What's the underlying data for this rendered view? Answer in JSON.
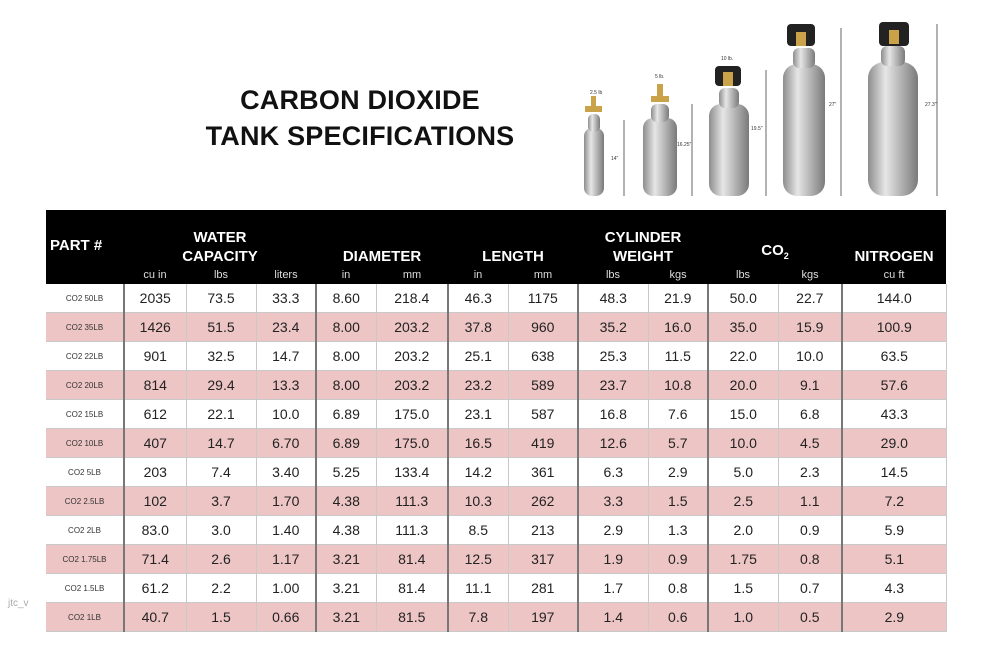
{
  "title": {
    "line1": "CARBON DIOXIDE",
    "line2": "TANK SPECIFICATIONS"
  },
  "tank_labels": {
    "weights": [
      "2.5 lb",
      "5 lb.",
      "10 lb.",
      "",
      ""
    ],
    "heights": [
      "14\"",
      "16.25\"",
      "19.5\"",
      "27\"",
      "27.3\""
    ]
  },
  "header": {
    "part": "PART #",
    "water_1": "WATER",
    "water_2": "CAPACITY",
    "diameter": "DIAMETER",
    "length": "LENGTH",
    "cyl_1": "CYLINDER",
    "cyl_2": "WEIGHT",
    "co2_main": "CO",
    "co2_sub": "2",
    "nitrogen": "NITROGEN"
  },
  "units": [
    "cu in",
    "lbs",
    "liters",
    "in",
    "mm",
    "in",
    "mm",
    "lbs",
    "kgs",
    "lbs",
    "kgs",
    "cu ft"
  ],
  "rows": [
    [
      "CO2 50LB",
      "2035",
      "73.5",
      "33.3",
      "8.60",
      "218.4",
      "46.3",
      "1175",
      "48.3",
      "21.9",
      "50.0",
      "22.7",
      "144.0"
    ],
    [
      "CO2 35LB",
      "1426",
      "51.5",
      "23.4",
      "8.00",
      "203.2",
      "37.8",
      "960",
      "35.2",
      "16.0",
      "35.0",
      "15.9",
      "100.9"
    ],
    [
      "CO2 22LB",
      "901",
      "32.5",
      "14.7",
      "8.00",
      "203.2",
      "25.1",
      "638",
      "25.3",
      "11.5",
      "22.0",
      "10.0",
      "63.5"
    ],
    [
      "CO2 20LB",
      "814",
      "29.4",
      "13.3",
      "8.00",
      "203.2",
      "23.2",
      "589",
      "23.7",
      "10.8",
      "20.0",
      "9.1",
      "57.6"
    ],
    [
      "CO2 15LB",
      "612",
      "22.1",
      "10.0",
      "6.89",
      "175.0",
      "23.1",
      "587",
      "16.8",
      "7.6",
      "15.0",
      "6.8",
      "43.3"
    ],
    [
      "CO2 10LB",
      "407",
      "14.7",
      "6.70",
      "6.89",
      "175.0",
      "16.5",
      "419",
      "12.6",
      "5.7",
      "10.0",
      "4.5",
      "29.0"
    ],
    [
      "CO2 5LB",
      "203",
      "7.4",
      "3.40",
      "5.25",
      "133.4",
      "14.2",
      "361",
      "6.3",
      "2.9",
      "5.0",
      "2.3",
      "14.5"
    ],
    [
      "CO2 2.5LB",
      "102",
      "3.7",
      "1.70",
      "4.38",
      "111.3",
      "10.3",
      "262",
      "3.3",
      "1.5",
      "2.5",
      "1.1",
      "7.2"
    ],
    [
      "CO2 2LB",
      "83.0",
      "3.0",
      "1.40",
      "4.38",
      "111.3",
      "8.5",
      "213",
      "2.9",
      "1.3",
      "2.0",
      "0.9",
      "5.9"
    ],
    [
      "CO2 1.75LB",
      "71.4",
      "2.6",
      "1.17",
      "3.21",
      "81.4",
      "12.5",
      "317",
      "1.9",
      "0.9",
      "1.75",
      "0.8",
      "5.1"
    ],
    [
      "CO2 1.5LB",
      "61.2",
      "2.2",
      "1.00",
      "3.21",
      "81.4",
      "11.1",
      "281",
      "1.7",
      "0.8",
      "1.5",
      "0.7",
      "4.3"
    ],
    [
      "CO2 1LB",
      "40.7",
      "1.5",
      "0.66",
      "3.21",
      "81.5",
      "7.8",
      "197",
      "1.4",
      "0.6",
      "1.0",
      "0.5",
      "2.9"
    ]
  ],
  "watermark": "jtc_v",
  "colors": {
    "header_bg": "#000000",
    "alt_row": "#eec5c5",
    "tank_body": "#b8b8b8",
    "valve_brass": "#c9a24a"
  }
}
